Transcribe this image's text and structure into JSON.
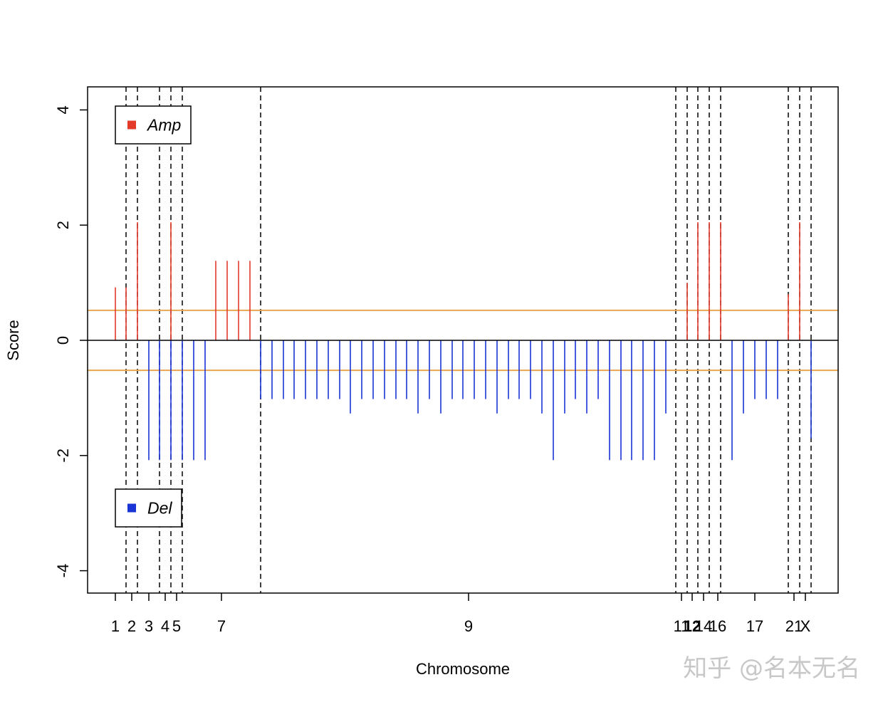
{
  "chart_data": {
    "type": "bar",
    "xlabel": "Chromosome",
    "ylabel": "Score",
    "ylim": [
      -4.4,
      4.4
    ],
    "y_ticks": [
      -4,
      -2,
      0,
      2,
      4
    ],
    "thresholds": [
      0.52,
      -0.52
    ],
    "x_tick_labels": [
      "1",
      "2",
      "3",
      "4",
      "5",
      "7",
      "9",
      "11",
      "12",
      "14",
      "16",
      "17",
      "21",
      "X"
    ],
    "x_ticks_emphasized": [
      "12"
    ],
    "legend": [
      {
        "name": "Amp",
        "color": "#e33a2a",
        "placement": "top-left"
      },
      {
        "name": "Del",
        "color": "#1a35d6",
        "placement": "bottom-left"
      }
    ],
    "colors": {
      "amp": "#e33a2a",
      "del": "#1a35d6",
      "threshold": "#e8a651",
      "zero": "#000000",
      "boundary": "#000000"
    },
    "grid": false,
    "series": [
      {
        "name": "Amp",
        "values": [
          0.92,
          0.92,
          2.05,
          0,
          0,
          2.05,
          0,
          0,
          0,
          1.38,
          1.38,
          1.38,
          1.38,
          1.0,
          2.05,
          2.05,
          2.05,
          0.8,
          2.05
        ]
      },
      {
        "name": "Del",
        "values": [
          -2.08,
          -2.08,
          -2.08,
          -2.08,
          -2.08,
          -2.08,
          -1.02,
          -1.02,
          -1.02,
          -1.02,
          -1.02,
          -1.02,
          -1.02,
          -1.02,
          -1.27,
          -1.02,
          -1.02,
          -1.02,
          -1.02,
          -1.02,
          -1.27,
          -1.02,
          -1.27,
          -1.02,
          -1.02,
          -1.02,
          -1.02,
          -1.27,
          -1.02,
          -1.02,
          -1.02,
          -1.27,
          -2.08,
          -1.27,
          -1.02,
          -1.27,
          -1.02,
          -2.08,
          -2.08,
          -2.08,
          -2.08,
          -2.08,
          -1.27,
          -2.08,
          -1.27,
          -1.02,
          -1.02,
          -1.02,
          -1.7,
          -1.7,
          -2.08,
          -1.7,
          -1.7,
          -2.08
        ]
      }
    ]
  },
  "watermark": "知乎 @名本无名"
}
